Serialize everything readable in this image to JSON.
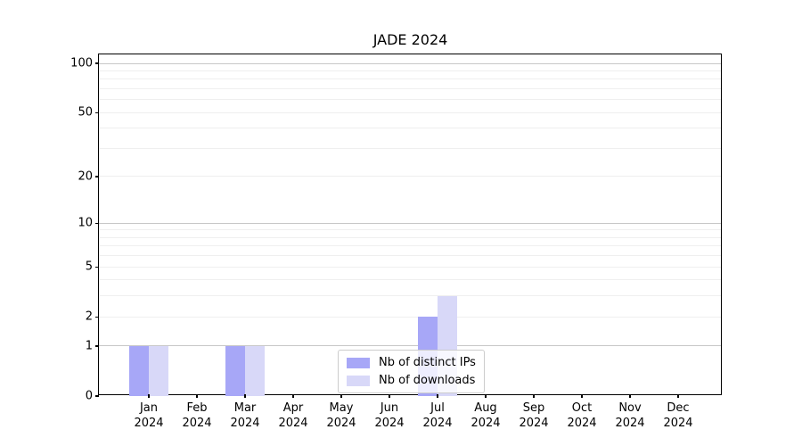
{
  "chart_data": {
    "type": "bar",
    "title": "JADE 2024",
    "categories": [
      "Jan 2024",
      "Feb 2024",
      "Mar 2024",
      "Apr 2024",
      "May 2024",
      "Jun 2024",
      "Jul 2024",
      "Aug 2024",
      "Sep 2024",
      "Oct 2024",
      "Nov 2024",
      "Dec 2024"
    ],
    "series": [
      {
        "name": "Nb of distinct IPs",
        "color": "#a7a7f7",
        "values": [
          1,
          0,
          1,
          0,
          0,
          0,
          2,
          0,
          0,
          0,
          0,
          0
        ]
      },
      {
        "name": "Nb of downloads",
        "color": "#d8d8f8",
        "values": [
          1,
          0,
          1,
          0,
          0,
          0,
          3,
          0,
          0,
          0,
          0,
          0
        ]
      }
    ],
    "xlabel": "",
    "ylabel": "",
    "y_scale": "log10(1+x)",
    "ylim": [
      0,
      113
    ],
    "yticks": [
      0,
      1,
      2,
      5,
      10,
      20,
      50,
      100
    ],
    "grid": {
      "major_values": [
        1,
        10,
        100
      ],
      "minor_values": [
        2,
        3,
        4,
        5,
        6,
        7,
        8,
        9,
        20,
        30,
        40,
        50,
        60,
        70,
        80,
        90
      ],
      "major_color": "#c8c8c8",
      "minor_color": "#efefef"
    },
    "legend": {
      "position": "bottom-center"
    }
  }
}
